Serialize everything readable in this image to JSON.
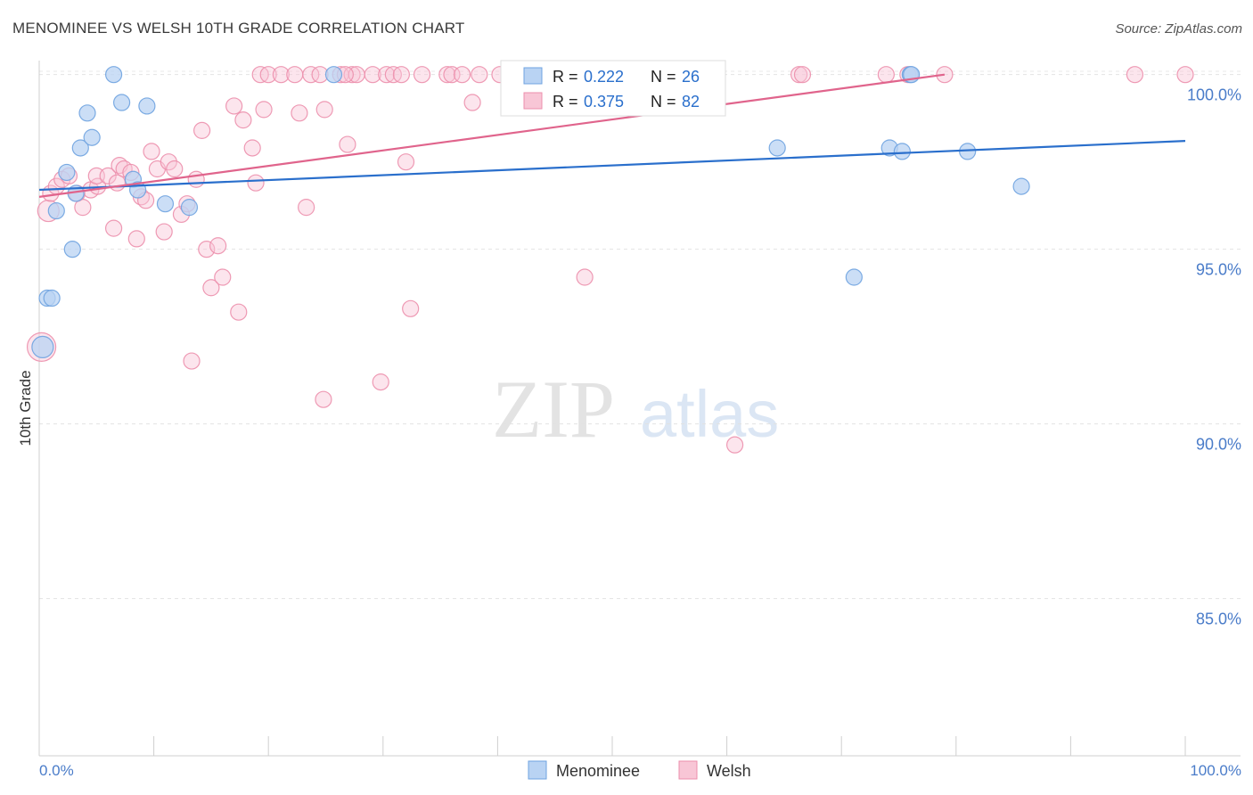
{
  "title": "MENOMINEE VS WELSH 10TH GRADE CORRELATION CHART",
  "source": "Source: ZipAtlas.com",
  "watermark": {
    "zip": "ZIP",
    "atlas": "atlas"
  },
  "colors": {
    "menominee": "#6fa3e0",
    "menominee_fill": "#b9d3f3",
    "menominee_line": "#2a6fcc",
    "welsh": "#ec8fac",
    "welsh_fill": "#f8c6d6",
    "welsh_line": "#e0648c",
    "tick_text": "#4a7cc9"
  },
  "chart_data": {
    "type": "scatter",
    "title": "MENOMINEE VS WELSH 10TH GRADE CORRELATION CHART",
    "xlabel": "",
    "ylabel": "10th Grade",
    "xlim": [
      0,
      100
    ],
    "ylim": [
      80.5,
      100.4
    ],
    "x_tick_labels": [
      "0.0%",
      "100.0%"
    ],
    "y_ticks": [
      85,
      90,
      95,
      100
    ],
    "y_tick_labels": [
      "85.0%",
      "90.0%",
      "95.0%",
      "100.0%"
    ],
    "grid": true,
    "legend_position": "top-center",
    "stats": [
      {
        "series": "Menominee",
        "r_label": "R =",
        "r": "0.222",
        "n_label": "N =",
        "n": "26"
      },
      {
        "series": "Welsh",
        "r_label": "R =",
        "r": "0.375",
        "n_label": "N =",
        "n": "82"
      }
    ],
    "series": [
      {
        "name": "Menominee",
        "trend": {
          "x": [
            0,
            100
          ],
          "y": [
            96.7,
            98.1
          ]
        },
        "points": [
          [
            0.3,
            92.2,
            2
          ],
          [
            0.7,
            93.6,
            1
          ],
          [
            1.1,
            93.6,
            1
          ],
          [
            1.5,
            96.1,
            1
          ],
          [
            2.4,
            97.2,
            1
          ],
          [
            2.9,
            95.0,
            1
          ],
          [
            3.2,
            96.6,
            1
          ],
          [
            3.6,
            97.9,
            1
          ],
          [
            4.2,
            98.9,
            1
          ],
          [
            4.6,
            98.2,
            1
          ],
          [
            6.5,
            100.0,
            1
          ],
          [
            7.2,
            99.2,
            1
          ],
          [
            8.2,
            97.0,
            1
          ],
          [
            8.6,
            96.7,
            1
          ],
          [
            9.4,
            99.1,
            1
          ],
          [
            11.0,
            96.3,
            1
          ],
          [
            13.1,
            96.2,
            1
          ],
          [
            25.7,
            100.0,
            1
          ],
          [
            64.4,
            97.9,
            1
          ],
          [
            71.1,
            94.2,
            1
          ],
          [
            74.2,
            97.9,
            1
          ],
          [
            75.3,
            97.8,
            1
          ],
          [
            76.0,
            100.0,
            1
          ],
          [
            81.0,
            97.8,
            1
          ],
          [
            85.7,
            96.8,
            1
          ],
          [
            76.1,
            100.0,
            1
          ]
        ]
      },
      {
        "name": "Welsh",
        "trend": {
          "x": [
            0,
            79
          ],
          "y": [
            96.5,
            100.0
          ]
        },
        "points": [
          [
            0.2,
            92.2,
            3
          ],
          [
            0.8,
            96.1,
            2
          ],
          [
            1.0,
            96.6,
            1
          ],
          [
            1.5,
            96.8,
            1
          ],
          [
            2.0,
            97.0,
            1
          ],
          [
            2.6,
            97.1,
            1
          ],
          [
            3.3,
            96.6,
            1
          ],
          [
            3.8,
            96.2,
            1
          ],
          [
            4.5,
            96.7,
            1
          ],
          [
            5.1,
            96.8,
            1
          ],
          [
            5.0,
            97.1,
            1
          ],
          [
            6.0,
            97.1,
            1
          ],
          [
            6.5,
            95.6,
            1
          ],
          [
            6.8,
            96.9,
            1
          ],
          [
            7.0,
            97.4,
            1
          ],
          [
            7.4,
            97.3,
            1
          ],
          [
            8.0,
            97.2,
            1
          ],
          [
            8.5,
            95.3,
            1
          ],
          [
            8.9,
            96.5,
            1
          ],
          [
            9.3,
            96.4,
            1
          ],
          [
            9.8,
            97.8,
            1
          ],
          [
            10.3,
            97.3,
            1
          ],
          [
            10.9,
            95.5,
            1
          ],
          [
            11.3,
            97.5,
            1
          ],
          [
            11.8,
            97.3,
            1
          ],
          [
            12.4,
            96.0,
            1
          ],
          [
            12.9,
            96.3,
            1
          ],
          [
            13.3,
            91.8,
            1
          ],
          [
            13.7,
            97.0,
            1
          ],
          [
            14.2,
            98.4,
            1
          ],
          [
            14.6,
            95.0,
            1
          ],
          [
            15.0,
            93.9,
            1
          ],
          [
            15.6,
            95.1,
            1
          ],
          [
            16.0,
            94.2,
            1
          ],
          [
            17.0,
            99.1,
            1
          ],
          [
            17.4,
            93.2,
            1
          ],
          [
            17.8,
            98.7,
            1
          ],
          [
            18.6,
            97.9,
            1
          ],
          [
            18.9,
            96.9,
            1
          ],
          [
            19.3,
            100.0,
            1
          ],
          [
            20.0,
            100.0,
            1
          ],
          [
            19.6,
            99.0,
            1
          ],
          [
            21.1,
            100.0,
            1
          ],
          [
            22.3,
            100.0,
            1
          ],
          [
            22.7,
            98.9,
            1
          ],
          [
            23.3,
            96.2,
            1
          ],
          [
            23.7,
            100.0,
            1
          ],
          [
            24.5,
            100.0,
            1
          ],
          [
            24.9,
            99.0,
            1
          ],
          [
            24.8,
            90.7,
            1
          ],
          [
            26.3,
            100.0,
            1
          ],
          [
            26.9,
            98.0,
            1
          ],
          [
            27.3,
            100.0,
            1
          ],
          [
            27.7,
            100.0,
            1
          ],
          [
            29.1,
            100.0,
            1
          ],
          [
            29.8,
            91.2,
            1
          ],
          [
            30.3,
            100.0,
            1
          ],
          [
            30.9,
            100.0,
            1
          ],
          [
            31.6,
            100.0,
            1
          ],
          [
            32.0,
            97.5,
            1
          ],
          [
            32.4,
            93.3,
            1
          ],
          [
            33.4,
            100.0,
            1
          ],
          [
            35.6,
            100.0,
            1
          ],
          [
            36.0,
            100.0,
            1
          ],
          [
            36.9,
            100.0,
            1
          ],
          [
            37.8,
            99.2,
            1
          ],
          [
            38.4,
            100.0,
            1
          ],
          [
            40.2,
            100.0,
            1
          ],
          [
            41.8,
            100.0,
            1
          ],
          [
            43.0,
            100.0,
            1
          ],
          [
            44.4,
            100.0,
            1
          ],
          [
            47.6,
            94.2,
            1
          ],
          [
            52.9,
            100.0,
            1
          ],
          [
            60.7,
            89.4,
            1
          ],
          [
            66.3,
            100.0,
            1
          ],
          [
            66.6,
            100.0,
            1
          ],
          [
            73.9,
            100.0,
            1
          ],
          [
            75.8,
            100.0,
            1
          ],
          [
            79.0,
            100.0,
            1
          ],
          [
            95.6,
            100.0,
            1
          ],
          [
            100.0,
            100.0,
            1
          ],
          [
            26.7,
            100.0,
            1
          ]
        ]
      }
    ],
    "legend": [
      "Menominee",
      "Welsh"
    ]
  }
}
